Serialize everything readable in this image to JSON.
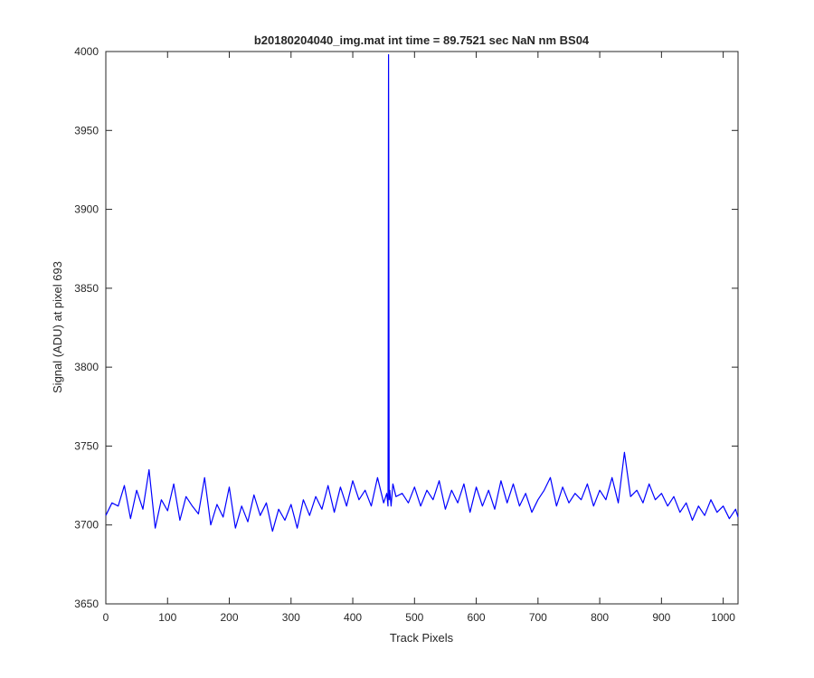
{
  "chart_data": {
    "type": "line",
    "title": "b20180204040_img.mat int time = 89.7521 sec  NaN nm BS04",
    "xlabel": "Track Pixels",
    "ylabel": "Signal (ADU) at pixel 693",
    "xlim": [
      0,
      1024
    ],
    "ylim": [
      3650,
      4000
    ],
    "xticks": [
      0,
      100,
      200,
      300,
      400,
      500,
      600,
      700,
      800,
      900,
      1000
    ],
    "yticks": [
      3650,
      3700,
      3750,
      3800,
      3850,
      3900,
      3950,
      4000
    ],
    "grid": false,
    "legend": "none",
    "series": [
      {
        "color": "#0000ff",
        "x": [
          0,
          10,
          20,
          30,
          40,
          50,
          60,
          70,
          80,
          90,
          100,
          110,
          120,
          130,
          140,
          150,
          160,
          170,
          180,
          190,
          200,
          210,
          220,
          230,
          240,
          250,
          260,
          270,
          280,
          290,
          300,
          310,
          320,
          330,
          340,
          350,
          360,
          370,
          380,
          390,
          400,
          410,
          420,
          430,
          440,
          450,
          455,
          457,
          458,
          459,
          460,
          462,
          465,
          470,
          480,
          490,
          500,
          510,
          520,
          530,
          540,
          550,
          560,
          570,
          580,
          590,
          600,
          610,
          620,
          630,
          640,
          650,
          660,
          670,
          680,
          690,
          700,
          710,
          720,
          730,
          740,
          750,
          760,
          770,
          780,
          790,
          800,
          810,
          820,
          830,
          840,
          850,
          860,
          870,
          880,
          890,
          900,
          910,
          920,
          930,
          940,
          950,
          960,
          970,
          980,
          990,
          1000,
          1010,
          1020,
          1024
        ],
        "y": [
          3706,
          3714,
          3712,
          3725,
          3704,
          3722,
          3710,
          3735,
          3698,
          3716,
          3709,
          3726,
          3703,
          3718,
          3712,
          3707,
          3730,
          3700,
          3713,
          3705,
          3724,
          3698,
          3712,
          3702,
          3719,
          3706,
          3714,
          3696,
          3710,
          3703,
          3713,
          3698,
          3716,
          3706,
          3718,
          3710,
          3725,
          3708,
          3724,
          3712,
          3728,
          3716,
          3722,
          3712,
          3730,
          3714,
          3720,
          3712,
          3998,
          3716,
          3722,
          3712,
          3726,
          3718,
          3720,
          3714,
          3724,
          3712,
          3722,
          3716,
          3728,
          3710,
          3722,
          3714,
          3726,
          3708,
          3724,
          3712,
          3722,
          3710,
          3728,
          3714,
          3726,
          3712,
          3720,
          3708,
          3716,
          3722,
          3730,
          3712,
          3724,
          3714,
          3720,
          3716,
          3726,
          3712,
          3722,
          3716,
          3730,
          3714,
          3746,
          3718,
          3722,
          3714,
          3726,
          3716,
          3720,
          3712,
          3718,
          3708,
          3714,
          3703,
          3712,
          3706,
          3716,
          3708,
          3712,
          3704,
          3710,
          3705
        ]
      }
    ]
  }
}
